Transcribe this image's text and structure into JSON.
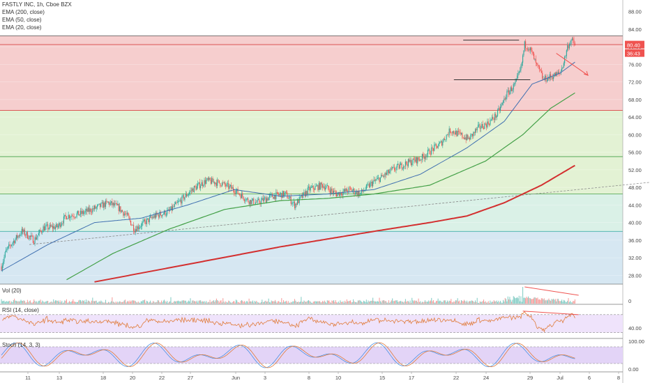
{
  "header": {
    "symbol": "FASTLY INC, 1h, Cboe BZX",
    "indicators": [
      "EMA (200, close)",
      "EMA (50, close)",
      "EMA (20, close)"
    ]
  },
  "price_badges": {
    "last": "80.40",
    "countdown": "36:43"
  },
  "panes": {
    "volume": "Vol (20)",
    "rsi": "RSI (14, close)",
    "stoch": "Stoch (14, 3, 3)"
  },
  "colors": {
    "up": "#26a69a",
    "down": "#ef5350",
    "ema200": "#d32f2f",
    "ema50": "#43a047",
    "ema20": "#3f6fb0",
    "zone_red": "#f4c6c6",
    "zone_green": "#def0cd",
    "zone_teal": "#d3efe3",
    "zone_blue": "#cfe3f0",
    "rsi": "#e07b39",
    "stoch_k": "#4a90e2",
    "stoch_d": "#e07b39"
  },
  "chart_data": [
    {
      "type": "candlestick",
      "title": "FASTLY INC, 1h, Cboe BZX",
      "x_tick_labels": [
        "11",
        "13",
        "18",
        "20",
        "22",
        "27",
        "Jun",
        "3",
        "8",
        "10",
        "15",
        "17",
        "22",
        "24",
        "29",
        "Jul",
        "6",
        "8"
      ],
      "y_tick_labels": [
        "28.00",
        "32.00",
        "36.00",
        "40.00",
        "44.00",
        "48.00",
        "52.00",
        "56.00",
        "60.00",
        "64.00",
        "68.00",
        "72.00",
        "76.00",
        "80.00",
        "84.00",
        "88.00"
      ],
      "ylim": [
        26,
        90
      ],
      "close_anchors": [
        [
          0,
          30
        ],
        [
          5,
          33.5
        ],
        [
          12,
          35.5
        ],
        [
          22,
          38
        ],
        [
          35,
          36
        ],
        [
          45,
          38.8
        ],
        [
          60,
          39
        ],
        [
          70,
          41.5
        ],
        [
          85,
          42
        ],
        [
          100,
          43.2
        ],
        [
          115,
          44.5
        ],
        [
          125,
          43.5
        ],
        [
          135,
          41.5
        ],
        [
          143,
          38.5
        ],
        [
          150,
          39.5
        ],
        [
          165,
          41.5
        ],
        [
          180,
          42.5
        ],
        [
          190,
          44.5
        ],
        [
          205,
          47.5
        ],
        [
          220,
          49.5
        ],
        [
          235,
          49
        ],
        [
          250,
          47.5
        ],
        [
          265,
          45
        ],
        [
          275,
          44.5
        ],
        [
          290,
          46
        ],
        [
          305,
          46.5
        ],
        [
          315,
          44
        ],
        [
          330,
          47.5
        ],
        [
          345,
          48.5
        ],
        [
          360,
          46.5
        ],
        [
          375,
          47.5
        ],
        [
          385,
          46.5
        ],
        [
          398,
          49
        ],
        [
          410,
          50.5
        ],
        [
          420,
          52
        ],
        [
          435,
          53.5
        ],
        [
          450,
          54.5
        ],
        [
          462,
          56.5
        ],
        [
          472,
          58
        ],
        [
          482,
          61
        ],
        [
          492,
          60
        ],
        [
          502,
          59
        ],
        [
          512,
          61.5
        ],
        [
          522,
          62.5
        ],
        [
          532,
          64.5
        ],
        [
          538,
          67
        ],
        [
          542,
          69
        ],
        [
          552,
          71.5
        ],
        [
          558,
          75
        ],
        [
          562,
          80.5
        ],
        [
          566,
          80
        ],
        [
          570,
          78.5
        ],
        [
          574,
          76
        ],
        [
          578,
          74.5
        ],
        [
          582,
          72.5
        ],
        [
          588,
          73
        ],
        [
          594,
          73.5
        ],
        [
          600,
          74
        ],
        [
          604,
          76.5
        ],
        [
          608,
          80
        ],
        [
          612,
          81.5
        ],
        [
          616,
          80.4
        ]
      ],
      "ema20_anchors": [
        [
          0,
          29
        ],
        [
          50,
          35
        ],
        [
          100,
          40
        ],
        [
          150,
          41
        ],
        [
          200,
          44
        ],
        [
          250,
          47.5
        ],
        [
          300,
          46
        ],
        [
          350,
          46.5
        ],
        [
          400,
          47.5
        ],
        [
          450,
          51
        ],
        [
          500,
          57
        ],
        [
          540,
          63
        ],
        [
          570,
          71.5
        ],
        [
          600,
          74
        ],
        [
          616,
          76.5
        ]
      ],
      "ema50_anchors": [
        [
          70,
          27
        ],
        [
          120,
          33
        ],
        [
          180,
          38.5
        ],
        [
          240,
          43
        ],
        [
          300,
          45
        ],
        [
          350,
          45.5
        ],
        [
          400,
          46.5
        ],
        [
          460,
          48.5
        ],
        [
          520,
          54
        ],
        [
          560,
          60
        ],
        [
          590,
          66
        ],
        [
          616,
          69.5
        ]
      ],
      "ema200_anchors": [
        [
          100,
          26.5
        ],
        [
          200,
          30.5
        ],
        [
          300,
          34.5
        ],
        [
          400,
          38
        ],
        [
          460,
          40
        ],
        [
          500,
          41.5
        ],
        [
          540,
          44.5
        ],
        [
          580,
          48.5
        ],
        [
          616,
          53
        ]
      ],
      "horizontal_levels": [
        82.5,
        80.5,
        65.5,
        55,
        46.5,
        38
      ],
      "zones": [
        {
          "from": 65.5,
          "to": 82.5,
          "color": "red"
        },
        {
          "from": 55,
          "to": 65.5,
          "color": "green"
        },
        {
          "from": 46.5,
          "to": 55,
          "color": "green"
        },
        {
          "from": 38,
          "to": 46.5,
          "color": "teal"
        },
        {
          "from": 26,
          "to": 38,
          "color": "blue"
        }
      ],
      "resistance": 81.5,
      "support": 72.5,
      "trendline": [
        [
          30,
          35
        ],
        [
          760,
          50.5
        ]
      ]
    },
    {
      "type": "bar",
      "title": "Vol (20)",
      "y_tick_labels": [
        "0"
      ],
      "note": "volume spike near breakout then declining volume"
    },
    {
      "type": "line",
      "title": "RSI (14, close)",
      "y_tick_labels": [
        "40.00"
      ],
      "bands": [
        70,
        30
      ]
    },
    {
      "type": "line",
      "title": "Stoch (14, 3, 3)",
      "y_tick_labels": [
        "100.00",
        "0.00"
      ],
      "bands": [
        80,
        20
      ]
    }
  ]
}
